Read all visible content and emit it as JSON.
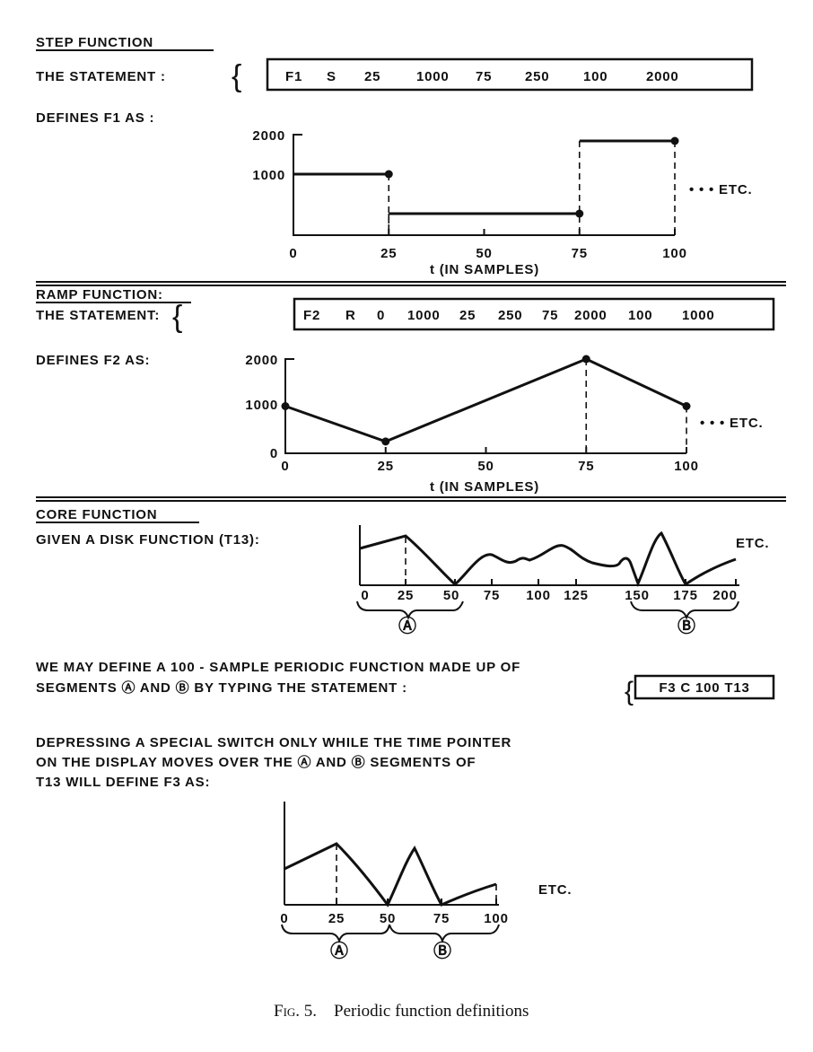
{
  "step": {
    "heading": "STEP FUNCTION",
    "statement_label": "THE STATEMENT :",
    "statement": [
      "F1",
      "S",
      "25",
      "1000",
      "75",
      "250",
      "100",
      "2000"
    ],
    "defines_label": "DEFINES F1 AS :",
    "y_ticks": [
      "2000",
      "1000"
    ],
    "x_ticks": [
      "0",
      "25",
      "50",
      "75",
      "100"
    ],
    "xlabel": "t (IN SAMPLES)",
    "etc": "• • • ETC.",
    "segments": [
      {
        "t_end": 25,
        "value": 1000
      },
      {
        "t_end": 75,
        "value": 250
      },
      {
        "t_end": 100,
        "value": 2000
      }
    ]
  },
  "ramp": {
    "heading": "RAMP FUNCTION:",
    "statement_label": "THE STATEMENT:",
    "statement": [
      "F2",
      "R",
      "0",
      "1000",
      "25",
      "250",
      "75",
      "2000",
      "100",
      "1000"
    ],
    "defines_label": "DEFINES F2 AS:",
    "y_ticks": [
      "2000",
      "1000",
      "0"
    ],
    "x_ticks": [
      "0",
      "25",
      "50",
      "75",
      "100"
    ],
    "xlabel": "t (IN SAMPLES)",
    "etc": "• • • ETC.",
    "points": [
      {
        "t": 0,
        "value": 1000
      },
      {
        "t": 25,
        "value": 250
      },
      {
        "t": 75,
        "value": 2000
      },
      {
        "t": 100,
        "value": 1000
      }
    ]
  },
  "core": {
    "heading": "CORE FUNCTION",
    "given_label": "GIVEN A DISK FUNCTION (T13):",
    "x_ticks": [
      "0",
      "25",
      "50",
      "75",
      "100",
      "125",
      "150",
      "175",
      "200"
    ],
    "etc": "ETC.",
    "segment_a": "Ⓐ",
    "segment_b": "Ⓑ",
    "text_line1": "WE MAY DEFINE A 100 - SAMPLE PERIODIC FUNCTION MADE UP OF",
    "text_line2": "SEGMENTS Ⓐ AND Ⓑ BY TYPING THE STATEMENT :",
    "statement": "F3 C 100 T13",
    "text_line3": "DEPRESSING A SPECIAL SWITCH ONLY WHILE THE TIME POINTER",
    "text_line4": "ON THE DISPLAY MOVES OVER THE Ⓐ AND Ⓑ SEGMENTS OF",
    "text_line5": "T13 WILL DEFINE F3 AS:",
    "result_x_ticks": [
      "0",
      "25",
      "50",
      "75",
      "100"
    ],
    "result_etc": "ETC."
  },
  "caption": {
    "label": "Fig. 5.",
    "text": "Periodic function definitions"
  }
}
